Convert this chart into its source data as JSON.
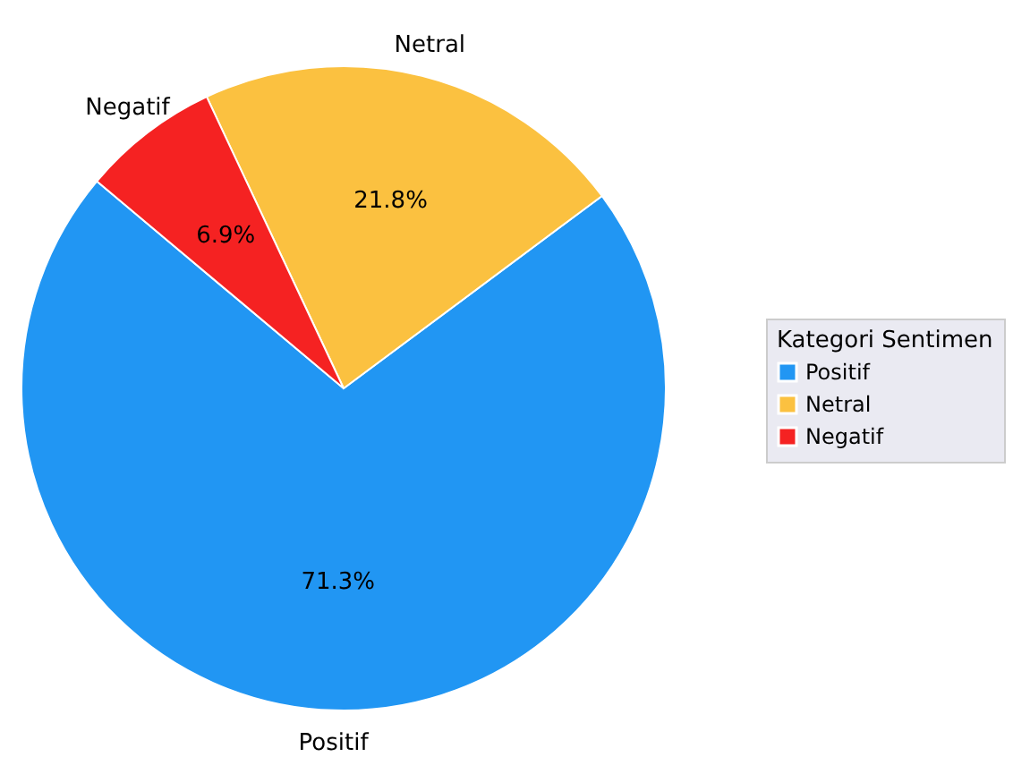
{
  "chart_data": {
    "type": "pie",
    "categories": [
      "Positif",
      "Netral",
      "Negatif"
    ],
    "values": [
      71.3,
      21.8,
      6.9
    ],
    "colors": [
      "#2196f3",
      "#fbc140",
      "#f52222"
    ],
    "legend_title": "Kategori Sentimen",
    "legend": "right",
    "value_labels": [
      "71.3%",
      "21.8%",
      "6.9%"
    ]
  }
}
